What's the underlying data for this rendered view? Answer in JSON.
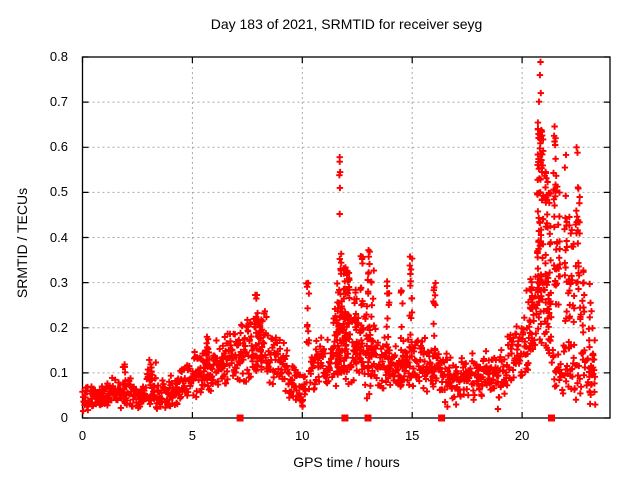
{
  "chart_data": {
    "type": "scatter",
    "title": "Day 183 of 2021, SRMTID for receiver seyg",
    "xlabel": "GPS time / hours",
    "ylabel": "SRMTID / TECUs",
    "xlim": [
      0,
      24
    ],
    "ylim": [
      0,
      0.8
    ],
    "xticks": [
      {
        "value": 0,
        "label": "0"
      },
      {
        "value": 5,
        "label": "5"
      },
      {
        "value": 10,
        "label": "10"
      },
      {
        "value": 15,
        "label": "15"
      },
      {
        "value": 20,
        "label": "20"
      }
    ],
    "yticks": [
      {
        "value": 0.0,
        "label": "0"
      },
      {
        "value": 0.1,
        "label": "0.1"
      },
      {
        "value": 0.2,
        "label": "0.2"
      },
      {
        "value": 0.3,
        "label": "0.3"
      },
      {
        "value": 0.4,
        "label": "0.4"
      },
      {
        "value": 0.5,
        "label": "0.5"
      },
      {
        "value": 0.6,
        "label": "0.6"
      },
      {
        "value": 0.7,
        "label": "0.7"
      },
      {
        "value": 0.8,
        "label": "0.8"
      }
    ],
    "grid": "dotted",
    "grid_color": "#a8a8a8",
    "frame_color": "#000000",
    "marker": "plus",
    "marker_color": "#ff0000",
    "background": "#ffffff",
    "seed": 1234,
    "cloud_segments": [
      [
        0.0,
        1.0,
        0.04,
        0.048,
        0.022,
        60
      ],
      [
        1.0,
        2.2,
        0.052,
        0.062,
        0.03,
        72
      ],
      [
        2.2,
        2.9,
        0.048,
        0.052,
        0.024,
        40
      ],
      [
        2.9,
        3.35,
        0.07,
        0.075,
        0.04,
        30
      ],
      [
        3.35,
        4.3,
        0.052,
        0.06,
        0.028,
        60
      ],
      [
        4.3,
        5.0,
        0.065,
        0.085,
        0.035,
        45
      ],
      [
        5.0,
        6.4,
        0.1,
        0.115,
        0.048,
        95
      ],
      [
        6.4,
        7.2,
        0.12,
        0.145,
        0.05,
        60
      ],
      [
        7.2,
        8.4,
        0.155,
        0.17,
        0.065,
        80
      ],
      [
        8.4,
        9.4,
        0.14,
        0.11,
        0.05,
        60
      ],
      [
        9.4,
        10.15,
        0.08,
        0.062,
        0.038,
        45
      ],
      [
        10.35,
        11.4,
        0.112,
        0.125,
        0.05,
        62
      ],
      [
        11.4,
        12.15,
        0.16,
        0.17,
        0.08,
        60
      ],
      [
        12.15,
        13.4,
        0.15,
        0.14,
        0.07,
        70
      ],
      [
        13.4,
        14.2,
        0.12,
        0.118,
        0.055,
        50
      ],
      [
        14.2,
        15.2,
        0.12,
        0.125,
        0.055,
        60
      ],
      [
        15.2,
        16.2,
        0.118,
        0.112,
        0.05,
        60
      ],
      [
        16.2,
        17.3,
        0.092,
        0.088,
        0.045,
        65
      ],
      [
        17.3,
        18.3,
        0.088,
        0.095,
        0.045,
        60
      ],
      [
        18.3,
        19.3,
        0.098,
        0.105,
        0.05,
        60
      ],
      [
        19.3,
        20.2,
        0.12,
        0.17,
        0.06,
        55
      ],
      [
        20.2,
        20.65,
        0.19,
        0.24,
        0.08,
        32
      ],
      [
        20.65,
        21.35,
        0.24,
        0.21,
        0.09,
        30
      ],
      [
        21.35,
        22.0,
        0.11,
        0.1,
        0.05,
        26
      ],
      [
        22.0,
        22.7,
        0.095,
        0.095,
        0.048,
        22
      ],
      [
        22.7,
        23.35,
        0.115,
        0.095,
        0.058,
        20
      ]
    ],
    "columns": [
      [
        1.9,
        0.03,
        0.12,
        8
      ],
      [
        3.1,
        0.05,
        0.14,
        8
      ],
      [
        5.7,
        0.08,
        0.185,
        8
      ],
      [
        7.9,
        0.12,
        0.28,
        12
      ],
      [
        8.1,
        0.1,
        0.26,
        10
      ],
      [
        10.25,
        0.06,
        0.3,
        16
      ],
      [
        11.62,
        0.1,
        0.3,
        22
      ],
      [
        11.75,
        0.12,
        0.375,
        20
      ],
      [
        11.95,
        0.1,
        0.345,
        24
      ],
      [
        12.1,
        0.12,
        0.33,
        18
      ],
      [
        12.42,
        0.1,
        0.31,
        16
      ],
      [
        12.7,
        0.12,
        0.36,
        16
      ],
      [
        13.0,
        0.02,
        0.375,
        20
      ],
      [
        13.2,
        0.08,
        0.345,
        14
      ],
      [
        13.9,
        0.08,
        0.335,
        14
      ],
      [
        14.5,
        0.06,
        0.33,
        12
      ],
      [
        14.95,
        0.1,
        0.37,
        14
      ],
      [
        16.0,
        0.08,
        0.305,
        12
      ],
      [
        20.4,
        0.15,
        0.33,
        12
      ],
      [
        20.75,
        0.25,
        0.655,
        40
      ],
      [
        20.9,
        0.22,
        0.64,
        36
      ],
      [
        21.1,
        0.18,
        0.56,
        26
      ],
      [
        21.25,
        0.15,
        0.5,
        20
      ],
      [
        21.5,
        0.25,
        0.63,
        22
      ],
      [
        21.65,
        0.2,
        0.55,
        16
      ],
      [
        22.0,
        0.2,
        0.5,
        16
      ],
      [
        22.15,
        0.15,
        0.45,
        14
      ],
      [
        22.3,
        0.12,
        0.42,
        12
      ],
      [
        22.5,
        0.25,
        0.55,
        14
      ],
      [
        22.62,
        0.2,
        0.52,
        12
      ],
      [
        22.8,
        0.1,
        0.44,
        12
      ],
      [
        23.1,
        0.05,
        0.3,
        14
      ],
      [
        23.25,
        0.04,
        0.22,
        10
      ]
    ],
    "outliers": [
      [
        11.7,
        0.578
      ],
      [
        11.7,
        0.568
      ],
      [
        11.72,
        0.545
      ],
      [
        11.69,
        0.538
      ],
      [
        11.71,
        0.51
      ],
      [
        11.7,
        0.452
      ],
      [
        20.84,
        0.789
      ],
      [
        20.81,
        0.76
      ],
      [
        20.85,
        0.72
      ],
      [
        20.77,
        0.701
      ],
      [
        21.48,
        0.646
      ],
      [
        20.9,
        0.635
      ],
      [
        20.82,
        0.618
      ],
      [
        21.52,
        0.62
      ],
      [
        22.48,
        0.6
      ],
      [
        22.52,
        0.588
      ],
      [
        22.0,
        0.583
      ],
      [
        21.95,
        0.555
      ],
      [
        16.6,
        0.025
      ],
      [
        17.0,
        0.03
      ],
      [
        18.9,
        0.02
      ],
      [
        10.0,
        0.028
      ]
    ],
    "event_markers": {
      "shape": "square",
      "color": "#ff0000",
      "y": 0,
      "hours": [
        7.17,
        11.94,
        12.99,
        16.34,
        21.34
      ]
    }
  }
}
